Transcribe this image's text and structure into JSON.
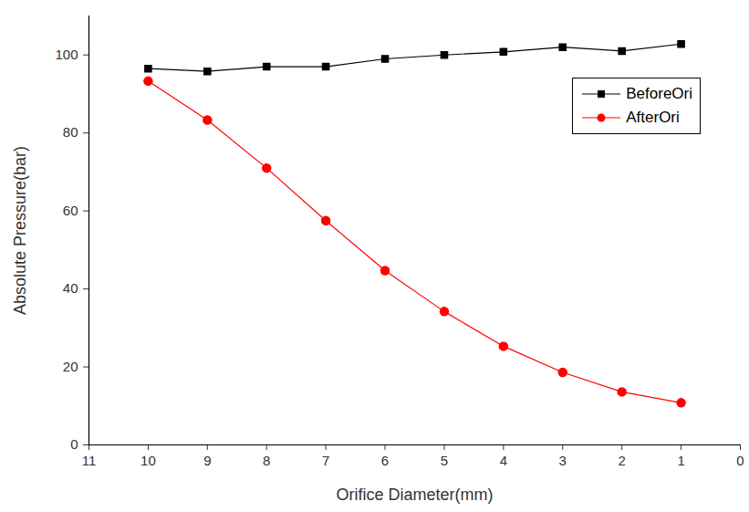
{
  "chart_data": {
    "type": "line",
    "x_label": "Orifice Diameter(mm)",
    "y_label": "Absolute Pressure(bar)",
    "x": [
      10,
      9,
      8,
      7,
      6,
      5,
      4,
      3,
      2,
      1
    ],
    "series": [
      {
        "name": "BeforeOri",
        "color": "#000000",
        "marker": "square",
        "line_style": "solid",
        "values": [
          96.5,
          95.8,
          97,
          97,
          99,
          100,
          100.8,
          102,
          101,
          102.8
        ]
      },
      {
        "name": "AfterOri",
        "color": "#ff0000",
        "marker": "circle",
        "line_style": "solid",
        "values": [
          93.3,
          83.3,
          71,
          57.5,
          44.7,
          34.2,
          25.3,
          18.6,
          13.6,
          10.8
        ]
      }
    ],
    "xlim": [
      11,
      0
    ],
    "xticks": [
      11,
      10,
      9,
      8,
      7,
      6,
      5,
      4,
      3,
      2,
      1,
      0
    ],
    "ylim": [
      0,
      110
    ],
    "yticks": [
      0,
      20,
      40,
      60,
      80,
      100
    ],
    "grid": false,
    "legend": "upper right"
  }
}
